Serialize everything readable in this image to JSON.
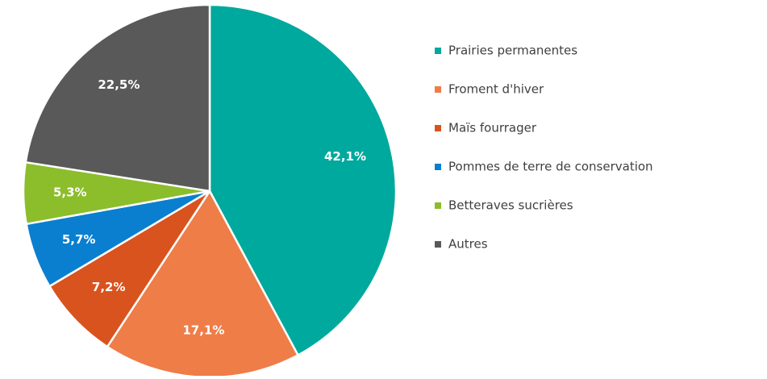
{
  "chart_data": {
    "type": "pie",
    "categories": [
      "Prairies permanentes",
      "Froment d'hiver",
      "Maïs fourrager",
      "Pommes de terre de conservation",
      "Betteraves sucrières",
      "Autres"
    ],
    "values": [
      42.1,
      17.1,
      7.2,
      5.7,
      5.3,
      22.5
    ],
    "value_labels": [
      "42,1%",
      "17,1%",
      "7,2%",
      "5,7%",
      "5,3%",
      "22,5%"
    ],
    "colors": [
      "#00a99d",
      "#ee7d48",
      "#d9531e",
      "#0a7fcf",
      "#8cbd2b",
      "#595959"
    ],
    "legend": "right"
  }
}
